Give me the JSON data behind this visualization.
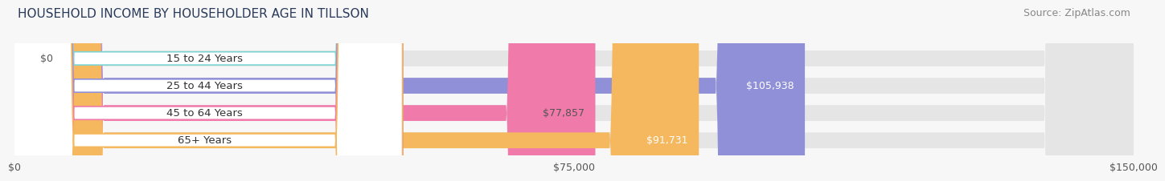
{
  "title": "HOUSEHOLD INCOME BY HOUSEHOLDER AGE IN TILLSON",
  "source": "Source: ZipAtlas.com",
  "categories": [
    "15 to 24 Years",
    "25 to 44 Years",
    "45 to 64 Years",
    "65+ Years"
  ],
  "values": [
    0,
    105938,
    77857,
    91731
  ],
  "bar_colors": [
    "#7dd4d4",
    "#9090d8",
    "#f07aaa",
    "#f5b85e"
  ],
  "label_colors": [
    "#555555",
    "#ffffff",
    "#555555",
    "#ffffff"
  ],
  "value_labels": [
    "$0",
    "$105,938",
    "$77,857",
    "$91,731"
  ],
  "xlim": [
    0,
    150000
  ],
  "xticks": [
    0,
    75000,
    150000
  ],
  "xtick_labels": [
    "$0",
    "$75,000",
    "$150,000"
  ],
  "bg_color": "#f7f7f7",
  "bar_bg_color": "#e5e5e5",
  "title_fontsize": 11,
  "source_fontsize": 9,
  "bar_height": 0.58,
  "bar_label_fontsize": 9,
  "category_fontsize": 9.5
}
